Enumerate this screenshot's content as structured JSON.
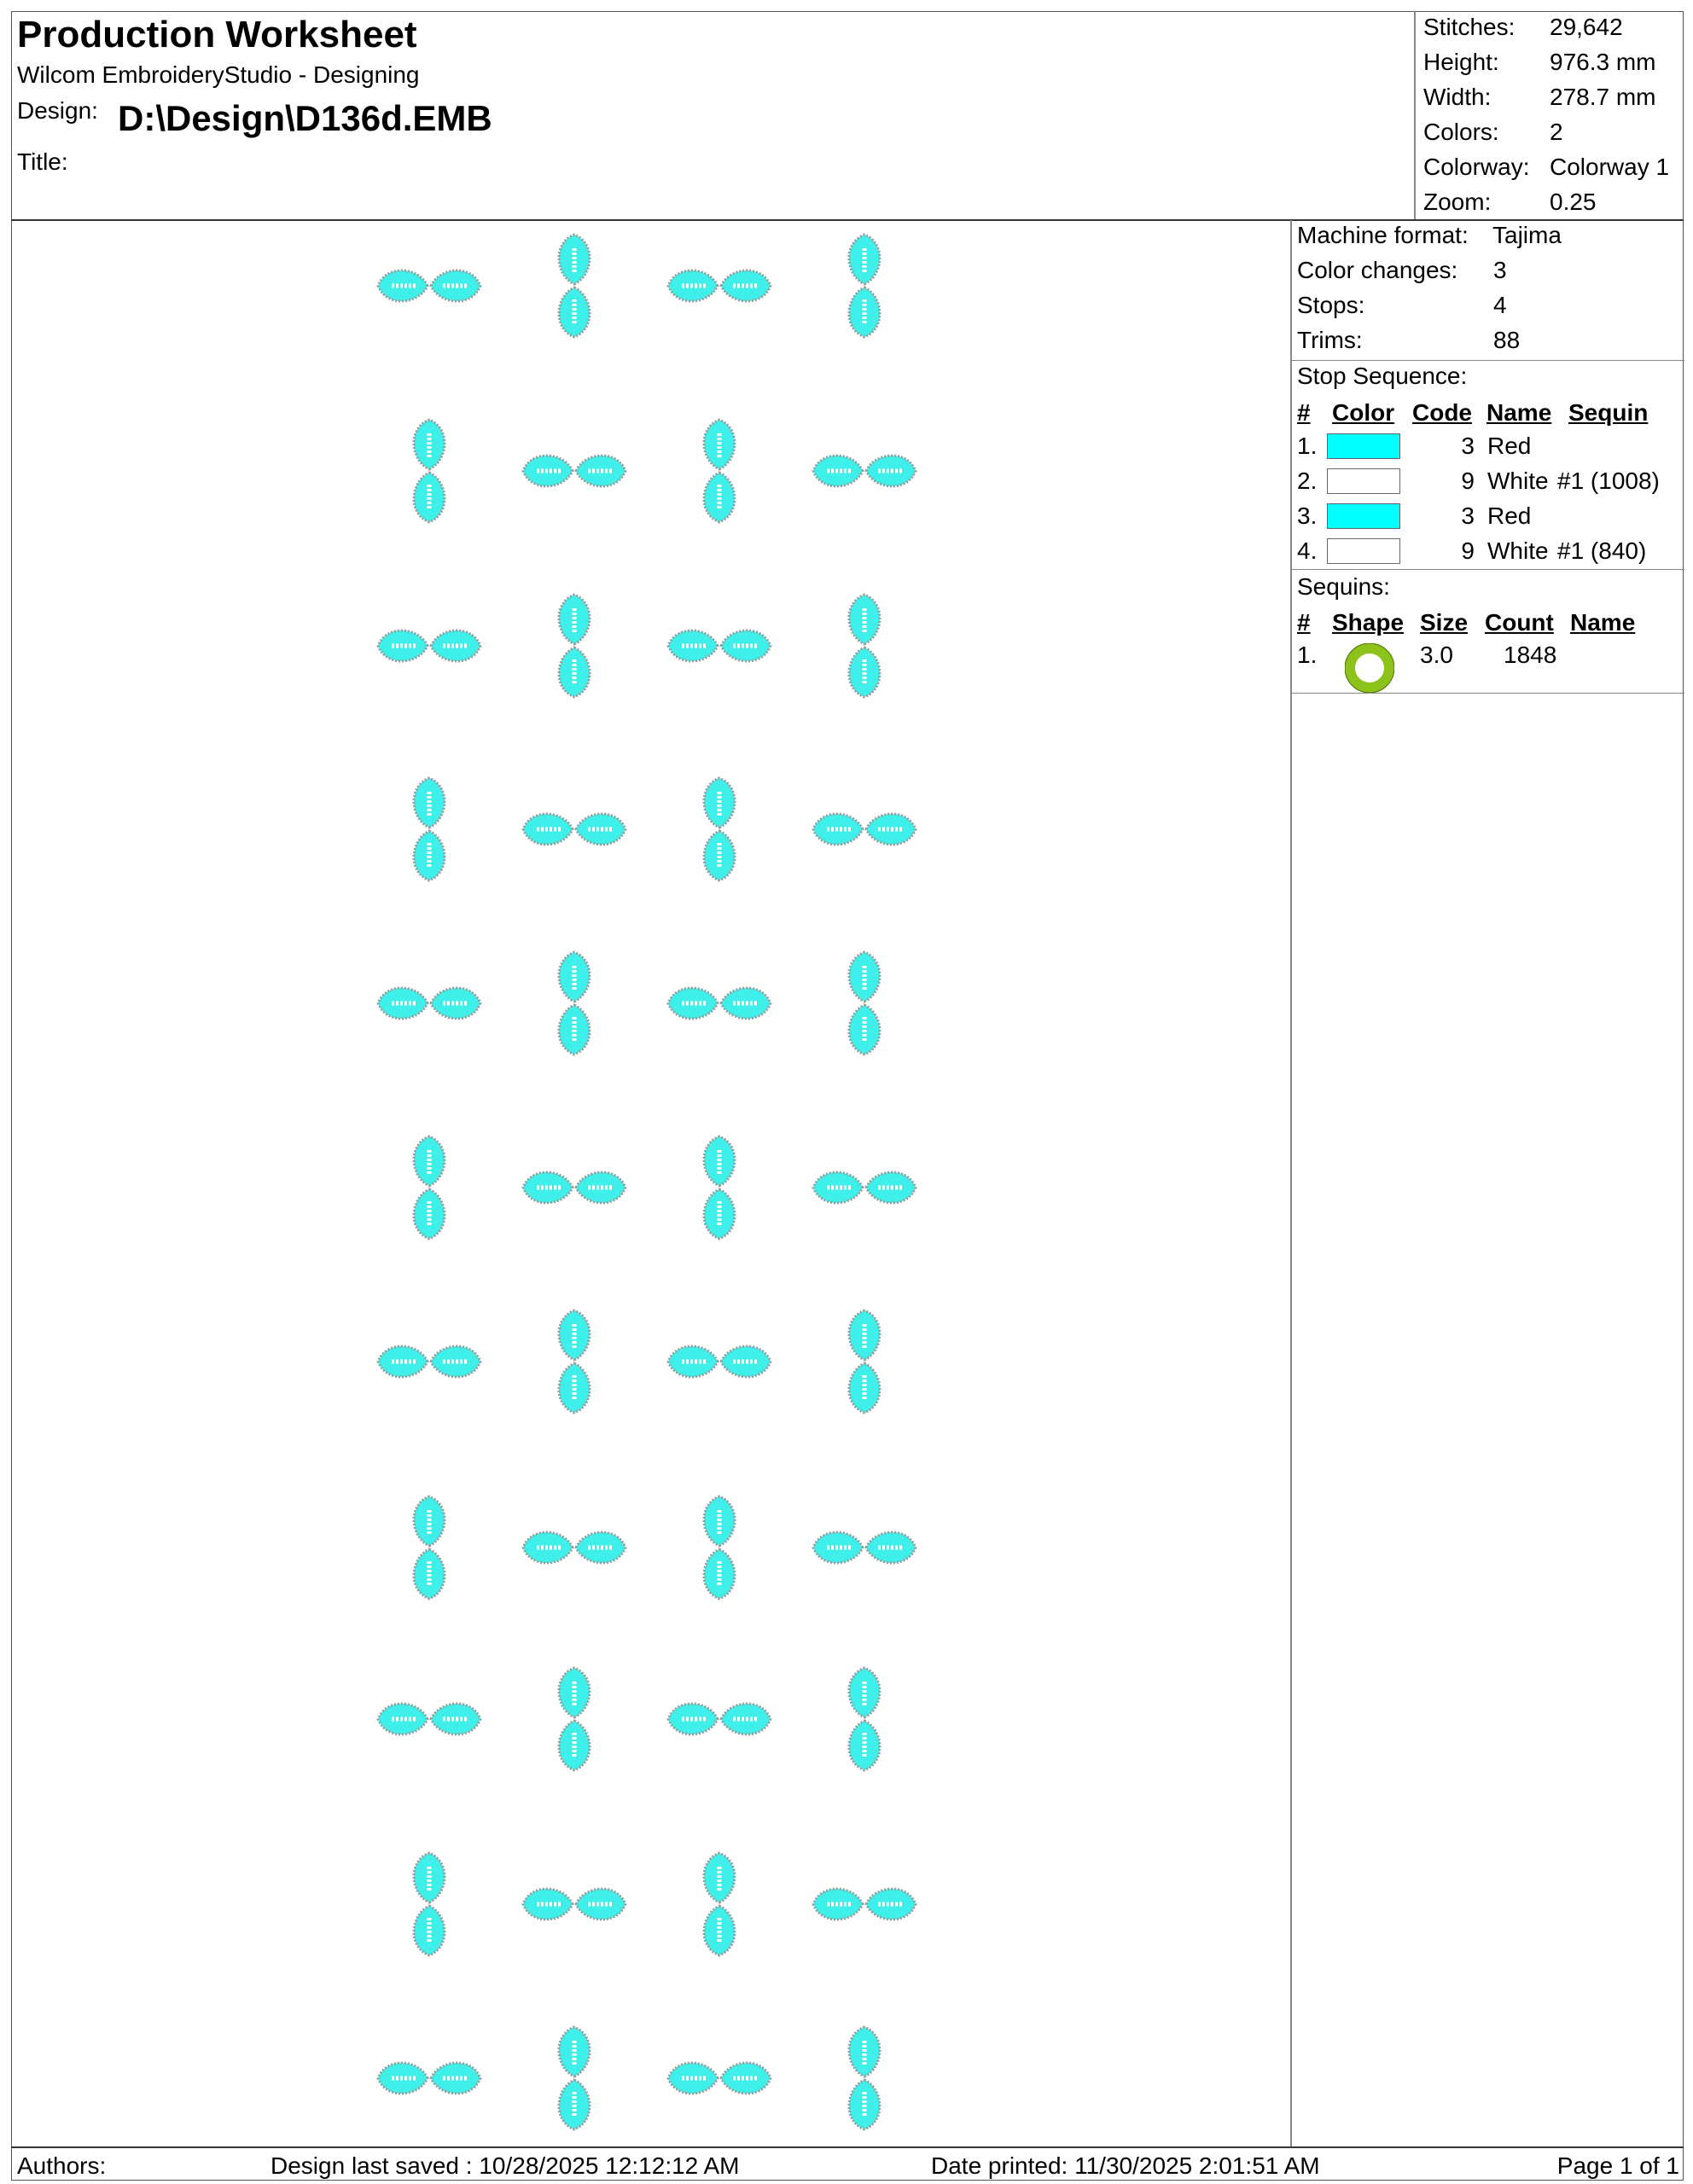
{
  "header": {
    "title": "Production Worksheet",
    "app": "Wilcom EmbroideryStudio - Designing",
    "design_label": "Design:",
    "design_path": "D:\\Design\\D136d.EMB",
    "title_label": "Title:",
    "stats": [
      {
        "label": "Stitches:",
        "value": "29,642"
      },
      {
        "label": "Height:",
        "value": "976.3 mm"
      },
      {
        "label": "Width:",
        "value": "278.7 mm"
      },
      {
        "label": "Colors:",
        "value": "2"
      },
      {
        "label": "Colorway:",
        "value": "Colorway 1"
      },
      {
        "label": "Zoom:",
        "value": "0.25"
      }
    ]
  },
  "machine": {
    "rows": [
      {
        "label": "Machine format:",
        "value": "Tajima"
      },
      {
        "label": "Color changes:",
        "value": "3"
      },
      {
        "label": "Stops:",
        "value": "4"
      },
      {
        "label": "Trims:",
        "value": "88"
      }
    ]
  },
  "stop_sequence": {
    "title": "Stop Sequence:",
    "columns": [
      "#",
      "Color",
      "Code",
      "Name",
      "Sequin"
    ],
    "rows": [
      {
        "num": "1.",
        "color": "#00ffff",
        "code": "3",
        "name": "Red",
        "sequin": ""
      },
      {
        "num": "2.",
        "color": "#ffffff",
        "code": "9",
        "name": "White",
        "sequin": "#1 (1008)"
      },
      {
        "num": "3.",
        "color": "#00ffff",
        "code": "3",
        "name": "Red",
        "sequin": ""
      },
      {
        "num": "4.",
        "color": "#ffffff",
        "code": "9",
        "name": "White",
        "sequin": "#1 (840)"
      }
    ]
  },
  "sequins": {
    "title": "Sequins:",
    "columns": [
      "#",
      "Shape",
      "Size",
      "Count",
      "Name"
    ],
    "rows": [
      {
        "num": "1.",
        "shape": "ring-icon",
        "shape_color": "#8cc21a",
        "size": "3.0",
        "count": "1848",
        "name": ""
      }
    ]
  },
  "footer": {
    "authors": "Authors:",
    "saved": "Design last saved : 10/28/2025 12:12:12 AM",
    "printed": "Date printed: 11/30/2025 2:01:51 AM",
    "page": "Page 1 of 1"
  },
  "design_preview": {
    "motif_fill": "#3ff0ea",
    "motif_outline": "#9a9a9a",
    "rows": 11,
    "columns": 4
  }
}
